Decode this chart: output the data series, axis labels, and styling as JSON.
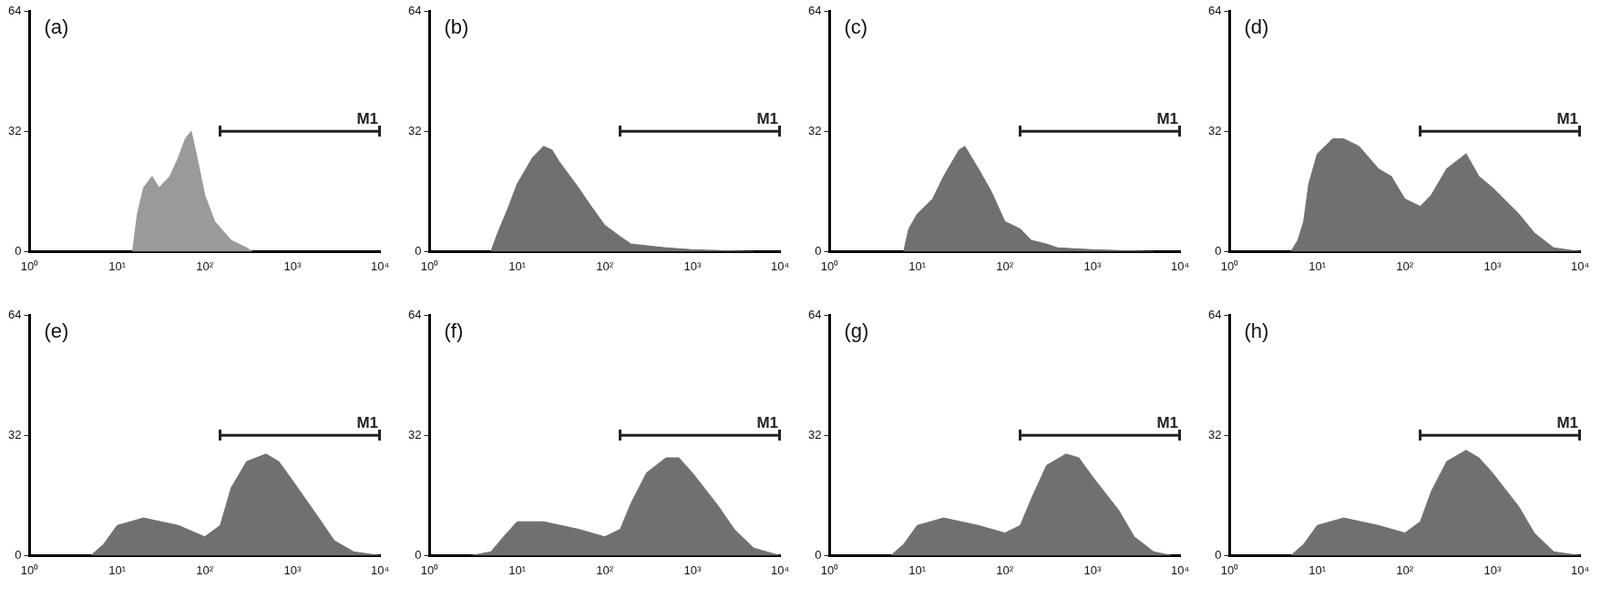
{
  "chart_data": [
    {
      "type": "area",
      "title": "(a)",
      "log": "x",
      "xlim": [
        1,
        10000
      ],
      "ylim": [
        0,
        64
      ],
      "xticks": [
        {
          "value": 1,
          "label": "10⁰"
        },
        {
          "value": 10,
          "label": "10¹"
        },
        {
          "value": 100,
          "label": "10²"
        },
        {
          "value": 1000,
          "label": "10³"
        },
        {
          "value": 10000,
          "label": "10⁴"
        }
      ],
      "yticks": [
        0,
        32,
        64
      ],
      "series": [
        {
          "type": "area",
          "color": "#9a9a9a",
          "x": [
            15,
            17,
            20,
            25,
            30,
            40,
            50,
            60,
            70,
            80,
            100,
            130,
            200,
            300,
            350
          ],
          "values": [
            0,
            10,
            17,
            20,
            17,
            20,
            25,
            30,
            32,
            26,
            15,
            8,
            3,
            1,
            0
          ]
        },
        {
          "type": "line",
          "name": "M1",
          "color": "#222222",
          "x": [
            150,
            10000
          ],
          "values": [
            32,
            32
          ]
        }
      ]
    },
    {
      "type": "area",
      "title": "(b)",
      "log": "x",
      "xlim": [
        1,
        10000
      ],
      "ylim": [
        0,
        64
      ],
      "xticks": [
        {
          "value": 1,
          "label": "10⁰"
        },
        {
          "value": 10,
          "label": "10¹"
        },
        {
          "value": 100,
          "label": "10²"
        },
        {
          "value": 1000,
          "label": "10³"
        },
        {
          "value": 10000,
          "label": "10⁴"
        }
      ],
      "yticks": [
        0,
        32,
        64
      ],
      "series": [
        {
          "type": "area",
          "color": "#707070",
          "x": [
            5,
            6,
            8,
            10,
            15,
            20,
            25,
            30,
            50,
            70,
            100,
            150,
            200,
            500,
            1000,
            5000
          ],
          "values": [
            0,
            5,
            12,
            18,
            25,
            28,
            27,
            24,
            17,
            12,
            7,
            4,
            2,
            1,
            0.5,
            0
          ]
        },
        {
          "type": "line",
          "name": "M1",
          "color": "#222222",
          "x": [
            150,
            10000
          ],
          "values": [
            32,
            32
          ]
        }
      ]
    },
    {
      "type": "area",
      "title": "(c)",
      "log": "x",
      "xlim": [
        1,
        10000
      ],
      "ylim": [
        0,
        64
      ],
      "xticks": [
        {
          "value": 1,
          "label": "10⁰"
        },
        {
          "value": 10,
          "label": "10¹"
        },
        {
          "value": 100,
          "label": "10²"
        },
        {
          "value": 1000,
          "label": "10³"
        },
        {
          "value": 10000,
          "label": "10⁴"
        }
      ],
      "yticks": [
        0,
        32,
        64
      ],
      "series": [
        {
          "type": "area",
          "color": "#707070",
          "x": [
            7,
            8,
            10,
            15,
            20,
            30,
            35,
            50,
            70,
            100,
            150,
            200,
            300,
            400,
            1000,
            5000
          ],
          "values": [
            0,
            6,
            10,
            14,
            20,
            27,
            28,
            22,
            16,
            8,
            6,
            3,
            2,
            1,
            0.5,
            0
          ]
        },
        {
          "type": "line",
          "name": "M1",
          "color": "#222222",
          "x": [
            150,
            10000
          ],
          "values": [
            32,
            32
          ]
        }
      ]
    },
    {
      "type": "area",
      "title": "(d)",
      "log": "x",
      "xlim": [
        1,
        10000
      ],
      "ylim": [
        0,
        64
      ],
      "xticks": [
        {
          "value": 1,
          "label": "10⁰"
        },
        {
          "value": 10,
          "label": "10¹"
        },
        {
          "value": 100,
          "label": "10²"
        },
        {
          "value": 1000,
          "label": "10³"
        },
        {
          "value": 10000,
          "label": "10⁴"
        }
      ],
      "yticks": [
        0,
        32,
        64
      ],
      "series": [
        {
          "type": "area",
          "color": "#707070",
          "x": [
            5,
            6,
            7,
            8,
            10,
            15,
            20,
            30,
            50,
            70,
            100,
            150,
            200,
            300,
            500,
            700,
            1000,
            2000,
            3000,
            5000,
            10000
          ],
          "values": [
            0,
            3,
            8,
            18,
            26,
            30,
            30,
            28,
            22,
            20,
            14,
            12,
            15,
            22,
            26,
            20,
            17,
            10,
            5,
            1,
            0
          ]
        },
        {
          "type": "line",
          "name": "M1",
          "color": "#222222",
          "x": [
            150,
            10000
          ],
          "values": [
            32,
            32
          ]
        }
      ]
    },
    {
      "type": "area",
      "title": "(e)",
      "log": "x",
      "xlim": [
        1,
        10000
      ],
      "ylim": [
        0,
        64
      ],
      "xticks": [
        {
          "value": 1,
          "label": "10⁰"
        },
        {
          "value": 10,
          "label": "10¹"
        },
        {
          "value": 100,
          "label": "10²"
        },
        {
          "value": 1000,
          "label": "10³"
        },
        {
          "value": 10000,
          "label": "10⁴"
        }
      ],
      "yticks": [
        0,
        32,
        64
      ],
      "series": [
        {
          "type": "area",
          "color": "#707070",
          "x": [
            5,
            7,
            10,
            20,
            50,
            100,
            150,
            200,
            300,
            500,
            700,
            1000,
            2000,
            3000,
            5000,
            10000
          ],
          "values": [
            0,
            3,
            8,
            10,
            8,
            5,
            8,
            18,
            25,
            27,
            25,
            20,
            10,
            4,
            1,
            0
          ]
        },
        {
          "type": "line",
          "name": "M1",
          "color": "#222222",
          "x": [
            150,
            10000
          ],
          "values": [
            32,
            32
          ]
        }
      ]
    },
    {
      "type": "area",
      "title": "(f)",
      "log": "x",
      "xlim": [
        1,
        10000
      ],
      "ylim": [
        0,
        64
      ],
      "xticks": [
        {
          "value": 1,
          "label": "10⁰"
        },
        {
          "value": 10,
          "label": "10¹"
        },
        {
          "value": 100,
          "label": "10²"
        },
        {
          "value": 1000,
          "label": "10³"
        },
        {
          "value": 10000,
          "label": "10⁴"
        }
      ],
      "yticks": [
        0,
        32,
        64
      ],
      "series": [
        {
          "type": "area",
          "color": "#707070",
          "x": [
            3,
            5,
            7,
            10,
            20,
            50,
            100,
            150,
            200,
            300,
            500,
            700,
            1000,
            2000,
            3000,
            5000,
            10000
          ],
          "values": [
            0,
            1,
            5,
            9,
            9,
            7,
            5,
            7,
            14,
            22,
            26,
            26,
            22,
            13,
            7,
            2,
            0
          ]
        },
        {
          "type": "line",
          "name": "M1",
          "color": "#222222",
          "x": [
            150,
            10000
          ],
          "values": [
            32,
            32
          ]
        }
      ]
    },
    {
      "type": "area",
      "title": "(g)",
      "log": "x",
      "xlim": [
        1,
        10000
      ],
      "ylim": [
        0,
        64
      ],
      "xticks": [
        {
          "value": 1,
          "label": "10⁰"
        },
        {
          "value": 10,
          "label": "10¹"
        },
        {
          "value": 100,
          "label": "10²"
        },
        {
          "value": 1000,
          "label": "10³"
        },
        {
          "value": 10000,
          "label": "10⁴"
        }
      ],
      "yticks": [
        0,
        32,
        64
      ],
      "series": [
        {
          "type": "area",
          "color": "#707070",
          "x": [
            5,
            7,
            10,
            20,
            50,
            100,
            150,
            200,
            300,
            500,
            700,
            1000,
            2000,
            3000,
            5000,
            8000
          ],
          "values": [
            0,
            3,
            8,
            10,
            8,
            6,
            8,
            15,
            24,
            27,
            26,
            21,
            12,
            5,
            1,
            0
          ]
        },
        {
          "type": "line",
          "name": "M1",
          "color": "#222222",
          "x": [
            150,
            10000
          ],
          "values": [
            32,
            32
          ]
        }
      ]
    },
    {
      "type": "area",
      "title": "(h)",
      "log": "x",
      "xlim": [
        1,
        10000
      ],
      "ylim": [
        0,
        64
      ],
      "xticks": [
        {
          "value": 1,
          "label": "10⁰"
        },
        {
          "value": 10,
          "label": "10¹"
        },
        {
          "value": 100,
          "label": "10²"
        },
        {
          "value": 1000,
          "label": "10³"
        },
        {
          "value": 10000,
          "label": "10⁴"
        }
      ],
      "yticks": [
        0,
        32,
        64
      ],
      "series": [
        {
          "type": "area",
          "color": "#707070",
          "x": [
            5,
            7,
            10,
            20,
            50,
            100,
            150,
            200,
            300,
            500,
            700,
            1000,
            2000,
            3000,
            5000,
            10000
          ],
          "values": [
            0,
            3,
            8,
            10,
            8,
            6,
            9,
            17,
            25,
            28,
            26,
            22,
            13,
            6,
            1,
            0
          ]
        },
        {
          "type": "line",
          "name": "M1",
          "color": "#222222",
          "x": [
            150,
            10000
          ],
          "values": [
            32,
            32
          ]
        }
      ]
    }
  ]
}
